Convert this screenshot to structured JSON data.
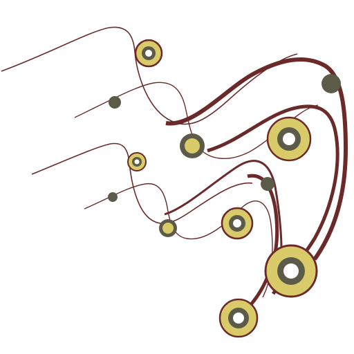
{
  "colors": {
    "background": "#ffffff",
    "curve": "#6b2a2a",
    "ring_fill": "#d9cb6a",
    "ring_outline": "#6b2a2a",
    "node": "#5c5a48",
    "hole": "#ffffff"
  },
  "artwork": {
    "subject": "abstract-swirl-connector-graphic",
    "node_style": "concentric-rings"
  }
}
